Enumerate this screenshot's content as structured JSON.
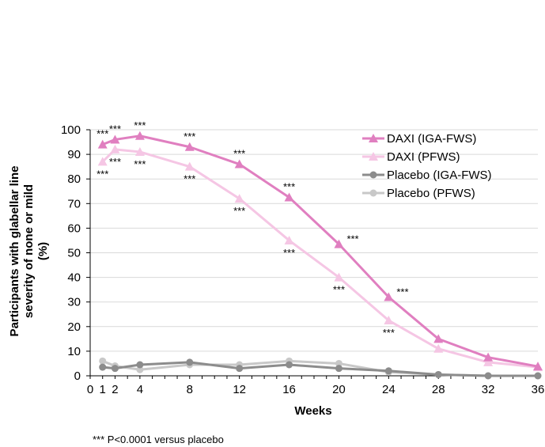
{
  "chart_data": {
    "type": "line",
    "xlabel": "Weeks",
    "ylabel_lines": [
      "Participants with glabellar line",
      "severity of none or mild",
      "(%)"
    ],
    "xlim": [
      0,
      36
    ],
    "ylim": [
      0,
      100
    ],
    "x_ticks": [
      0,
      1,
      2,
      4,
      8,
      12,
      16,
      20,
      24,
      28,
      32,
      36
    ],
    "y_ticks": [
      0,
      10,
      20,
      30,
      40,
      50,
      60,
      70,
      80,
      90,
      100
    ],
    "grid": "horizontal",
    "legend_position": "top-right",
    "series": [
      {
        "name": "DAXI (IGA-FWS)",
        "color": "#e07fc0",
        "marker": "triangle",
        "x": [
          1,
          2,
          4,
          8,
          12,
          16,
          20,
          24,
          28,
          32,
          36
        ],
        "y": [
          94,
          96,
          97.5,
          93,
          86,
          72.5,
          53.5,
          32,
          15,
          7.5,
          3.8
        ]
      },
      {
        "name": "DAXI (PFWS)",
        "color": "#f5c6e4",
        "marker": "triangle",
        "x": [
          1,
          2,
          4,
          8,
          12,
          16,
          20,
          24,
          28,
          32,
          36
        ],
        "y": [
          87,
          92,
          91,
          85,
          72,
          55,
          40,
          22.5,
          11,
          5.5,
          3.5
        ]
      },
      {
        "name": "Placebo (IGA-FWS)",
        "color": "#8c8c8c",
        "marker": "circle",
        "x": [
          1,
          2,
          4,
          8,
          12,
          16,
          20,
          24,
          28,
          32,
          36
        ],
        "y": [
          3.5,
          3,
          4.5,
          5.5,
          3,
          4.5,
          3,
          2,
          0.5,
          0,
          0
        ]
      },
      {
        "name": "Placebo (PFWS)",
        "color": "#c8c8c8",
        "marker": "circle",
        "x": [
          1,
          2,
          4,
          8,
          12,
          16,
          20,
          24,
          28,
          32,
          36
        ],
        "y": [
          6,
          4,
          2.5,
          4.5,
          4.5,
          6,
          5,
          1.5,
          0.5,
          0,
          0
        ]
      }
    ],
    "annotations": [
      {
        "text": "***",
        "x": 1,
        "y": 94,
        "pos": "above"
      },
      {
        "text": "***",
        "x": 2,
        "y": 96,
        "pos": "above"
      },
      {
        "text": "***",
        "x": 4,
        "y": 97.5,
        "pos": "above"
      },
      {
        "text": "***",
        "x": 8,
        "y": 93,
        "pos": "above"
      },
      {
        "text": "***",
        "x": 12,
        "y": 86,
        "pos": "above"
      },
      {
        "text": "***",
        "x": 16,
        "y": 72.5,
        "pos": "above"
      },
      {
        "text": "***",
        "x": 20,
        "y": 53.5,
        "pos": "right"
      },
      {
        "text": "***",
        "x": 24,
        "y": 32,
        "pos": "right"
      },
      {
        "text": "***",
        "x": 1,
        "y": 87,
        "pos": "below"
      },
      {
        "text": "***",
        "x": 2,
        "y": 92,
        "pos": "below"
      },
      {
        "text": "***",
        "x": 4,
        "y": 91,
        "pos": "below"
      },
      {
        "text": "***",
        "x": 8,
        "y": 85,
        "pos": "below"
      },
      {
        "text": "***",
        "x": 12,
        "y": 72,
        "pos": "below"
      },
      {
        "text": "***",
        "x": 16,
        "y": 55,
        "pos": "below"
      },
      {
        "text": "***",
        "x": 20,
        "y": 40,
        "pos": "below"
      },
      {
        "text": "***",
        "x": 24,
        "y": 22.5,
        "pos": "below"
      }
    ]
  },
  "footnote": "*** P<0.0001 versus placebo"
}
